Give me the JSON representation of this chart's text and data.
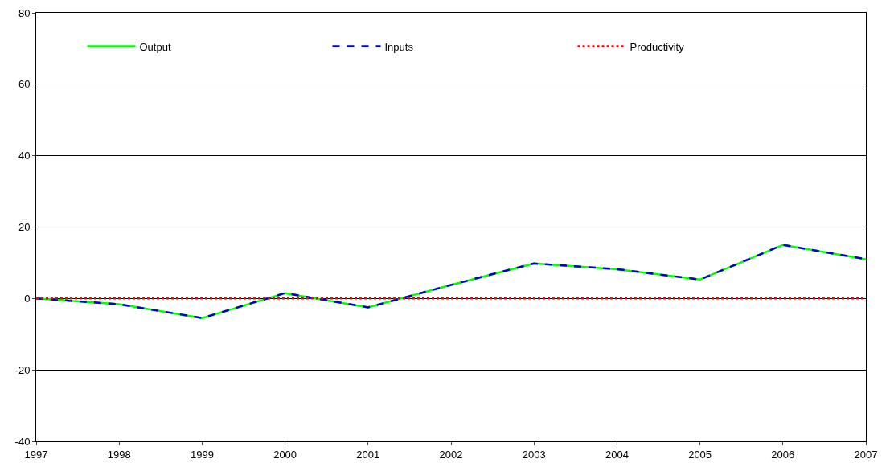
{
  "chart_data": {
    "type": "line",
    "x": [
      1997,
      1998,
      1999,
      2000,
      2001,
      2002,
      2003,
      2004,
      2005,
      2006,
      2007
    ],
    "series": [
      {
        "name": "Output",
        "color": "#00ff00",
        "line_style": "solid",
        "values": [
          0,
          -1.6,
          -5.5,
          1.5,
          -2.5,
          3.8,
          9.8,
          8.2,
          5.3,
          15,
          11
        ]
      },
      {
        "name": "Inputs",
        "color": "#0000cc",
        "line_style": "dashed",
        "values": [
          0,
          -1.6,
          -5.5,
          1.5,
          -2.5,
          3.8,
          9.8,
          8.2,
          5.3,
          15,
          11
        ]
      },
      {
        "name": "Productivity",
        "color": "#ff0000",
        "line_style": "dotted",
        "values": [
          0,
          0,
          0,
          0,
          0,
          0,
          0,
          0,
          0,
          0,
          0
        ]
      }
    ],
    "xlim": [
      1997,
      2007
    ],
    "xticks": [
      1997,
      1998,
      1999,
      2000,
      2001,
      2002,
      2003,
      2004,
      2005,
      2006,
      2007
    ],
    "ylim": [
      -40,
      80
    ],
    "yticks": [
      -40,
      -20,
      0,
      20,
      40,
      60,
      80
    ],
    "grid": "y",
    "legend": "top",
    "marker": "none"
  }
}
